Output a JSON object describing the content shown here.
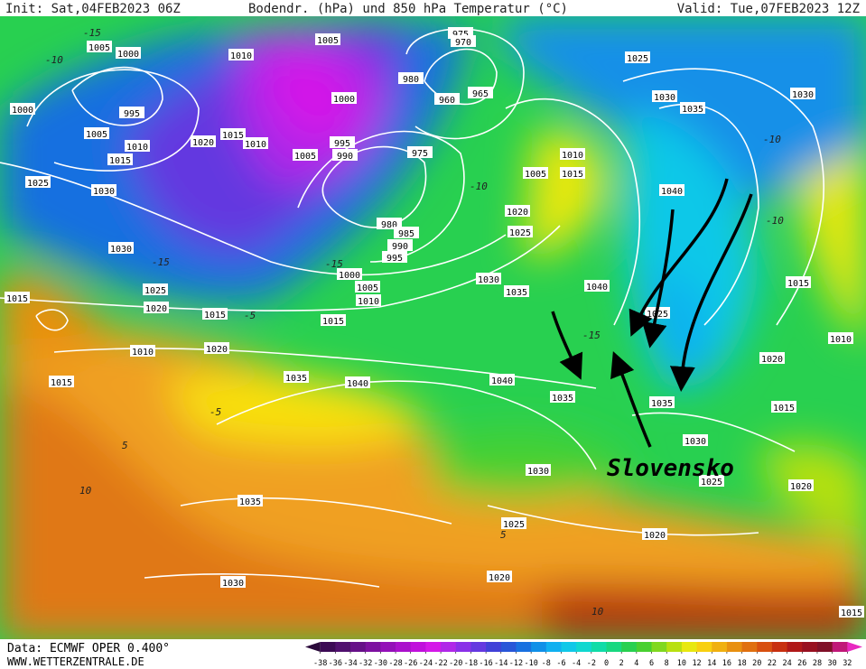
{
  "header": {
    "init": "Init: Sat,04FEB2023 06Z",
    "title": "Bodendr. (hPa) und 850 hPa Temperatur (°C)",
    "valid": "Valid: Tue,07FEB2023 12Z"
  },
  "footer": {
    "source": "Data: ECMWF OPER 0.400°",
    "website": "WWW.WETTERZENTRALE.DE"
  },
  "annotation": "Slovensko",
  "isobar_labels": [
    1005,
    1000,
    1010,
    1005,
    975,
    970,
    1025,
    1000,
    995,
    1005,
    1010,
    1015,
    1020,
    1015,
    1010,
    1000,
    980,
    960,
    965,
    1030,
    1035,
    1030,
    995,
    990,
    1005,
    975,
    1010,
    1005,
    1015,
    1025,
    1030,
    1040,
    980,
    985,
    990,
    995,
    1020,
    1025,
    1030,
    1000,
    1005,
    1010,
    1030,
    1035,
    1040,
    1015,
    1025,
    1020,
    1015,
    1015,
    1025,
    1015,
    1010,
    1010,
    1020,
    1035,
    1040,
    1040,
    1035,
    1035,
    1020,
    1015,
    1015,
    1030,
    1030,
    1025,
    1020,
    1035,
    1025,
    1020,
    1020,
    1030,
    1015
  ],
  "isotherm_labels": [
    -15,
    -10,
    -10,
    -15,
    -15,
    -10,
    -5,
    -5,
    5,
    10,
    5,
    10,
    -15,
    -10
  ],
  "colorbar": {
    "ticks": [
      -38,
      -36,
      -34,
      -32,
      -30,
      -28,
      -26,
      -24,
      -22,
      -20,
      -18,
      -16,
      -14,
      -12,
      -10,
      -8,
      -6,
      -4,
      -2,
      0,
      2,
      4,
      6,
      8,
      10,
      12,
      14,
      16,
      18,
      20,
      22,
      24,
      26,
      28,
      30,
      32
    ],
    "colors": [
      "#2a0a3a",
      "#3c0a55",
      "#50106e",
      "#661088",
      "#7d10a0",
      "#9410b8",
      "#aa10cc",
      "#c010dc",
      "#d418e8",
      "#b028e8",
      "#8a30e8",
      "#6438e0",
      "#4040d8",
      "#2856d8",
      "#1870e0",
      "#1090e8",
      "#10b0f0",
      "#10c8e8",
      "#10d8d0",
      "#10dca8",
      "#18d880",
      "#28d050",
      "#48d030",
      "#80d820",
      "#b8e010",
      "#e8e810",
      "#f8d010",
      "#f0b010",
      "#e89010",
      "#e07010",
      "#d85010",
      "#c83010",
      "#b01818",
      "#981020",
      "#801028",
      "#c01878",
      "#e828c0"
    ]
  }
}
